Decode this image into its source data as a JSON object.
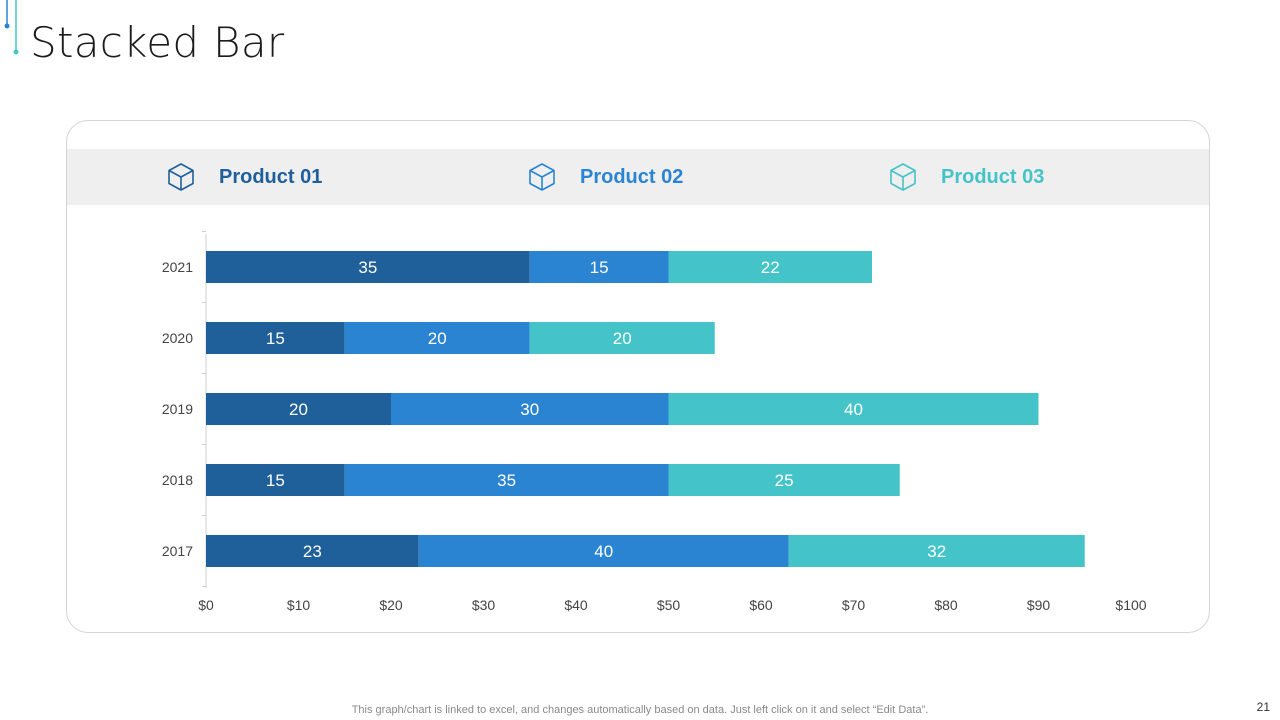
{
  "slide": {
    "title": "Stacked Bar",
    "footnote": "This graph/chart is linked to excel, and changes automatically based on data. Just left click on it and select “Edit Data”.",
    "page_number": "21"
  },
  "colors": {
    "product_01": "#1f5f9a",
    "product_02": "#2a84d2",
    "product_03": "#44c4c8",
    "axis": "#cfcfcf",
    "tick_text": "#444444",
    "bar_label": "#ffffff"
  },
  "legend": [
    {
      "label": "Product 01",
      "icon": "cube-icon"
    },
    {
      "label": "Product 02",
      "icon": "cube-icon"
    },
    {
      "label": "Product 03",
      "icon": "cube-icon"
    }
  ],
  "chart_data": {
    "type": "bar",
    "orientation": "horizontal",
    "stacked": true,
    "categories": [
      "2017",
      "2018",
      "2019",
      "2020",
      "2021"
    ],
    "series": [
      {
        "name": "Product 01",
        "values": [
          23,
          15,
          20,
          15,
          35
        ]
      },
      {
        "name": "Product 02",
        "values": [
          40,
          35,
          30,
          20,
          15
        ]
      },
      {
        "name": "Product 03",
        "values": [
          32,
          25,
          40,
          20,
          22
        ]
      }
    ],
    "xlim": [
      0,
      100
    ],
    "xticks": [
      0,
      10,
      20,
      30,
      40,
      50,
      60,
      70,
      80,
      90,
      100
    ],
    "xtick_labels": [
      "$0",
      "$10",
      "$20",
      "$30",
      "$40",
      "$50",
      "$60",
      "$70",
      "$80",
      "$90",
      "$100"
    ],
    "data_labels": true,
    "grid": false,
    "legend_position": "top"
  }
}
